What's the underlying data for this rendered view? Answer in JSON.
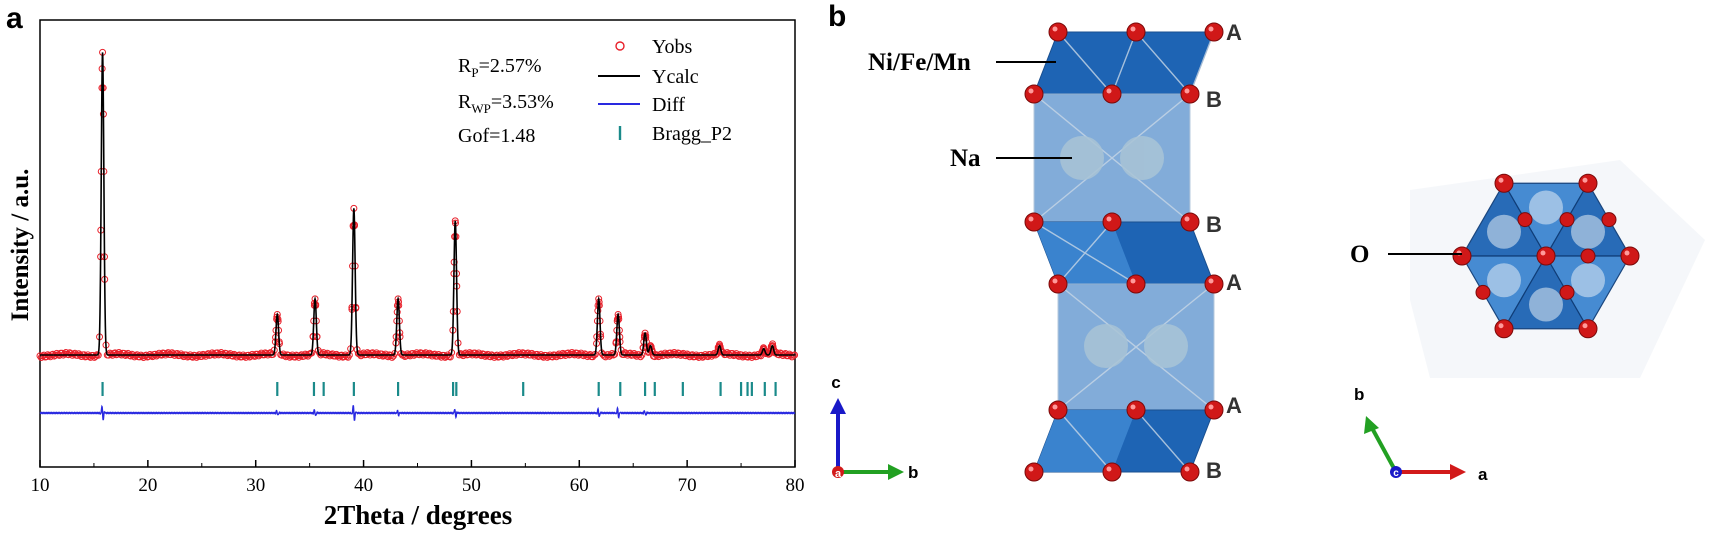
{
  "panels": {
    "a": {
      "label": "a"
    },
    "b": {
      "label": "b"
    }
  },
  "chart_data": {
    "type": "line",
    "title": "",
    "xlabel": "2Theta / degrees",
    "ylabel": "Intensity / a.u.",
    "xlim": [
      10,
      80
    ],
    "xticks": [
      10,
      20,
      30,
      40,
      50,
      60,
      70,
      80
    ],
    "y_ticks_shown": false,
    "grid": false,
    "legend_position": "top-right",
    "fit_stats": [
      {
        "name": "R",
        "sub": "P",
        "text": "=2.57%"
      },
      {
        "name": "R",
        "sub": "WP",
        "text": "=3.53%"
      },
      {
        "name": "Gof",
        "sub": "",
        "text": "=1.48"
      }
    ],
    "series": [
      {
        "name": "Yobs",
        "marker": "open-circle",
        "color": "#e8202a"
      },
      {
        "name": "Ycalc",
        "marker": "line",
        "color": "#000000"
      },
      {
        "name": "Diff",
        "marker": "line",
        "color": "#2929e0"
      },
      {
        "name": "Bragg_P2",
        "marker": "tick",
        "color": "#1a8a8a"
      }
    ],
    "baseline": 0.0,
    "peaks": [
      {
        "x": 15.8,
        "y": 0.97
      },
      {
        "x": 32.0,
        "y": 0.13
      },
      {
        "x": 35.5,
        "y": 0.18
      },
      {
        "x": 39.1,
        "y": 0.47
      },
      {
        "x": 43.2,
        "y": 0.18
      },
      {
        "x": 48.5,
        "y": 0.43
      },
      {
        "x": 61.8,
        "y": 0.18
      },
      {
        "x": 63.6,
        "y": 0.13
      },
      {
        "x": 66.1,
        "y": 0.07
      },
      {
        "x": 66.6,
        "y": 0.03
      },
      {
        "x": 73.0,
        "y": 0.03
      },
      {
        "x": 77.1,
        "y": 0.02
      },
      {
        "x": 77.9,
        "y": 0.03
      }
    ],
    "bragg_positions": [
      15.8,
      32.0,
      35.4,
      36.3,
      39.1,
      43.2,
      48.3,
      48.6,
      54.8,
      61.8,
      63.8,
      66.1,
      67.0,
      69.6,
      73.1,
      75.0,
      75.6,
      76.0,
      77.2,
      78.2
    ],
    "diff_spikes": [
      {
        "x": 15.8,
        "amp": 0.9
      },
      {
        "x": 32.0,
        "amp": 0.3
      },
      {
        "x": 35.5,
        "amp": 0.4
      },
      {
        "x": 39.1,
        "amp": 1.0
      },
      {
        "x": 43.2,
        "amp": 0.3
      },
      {
        "x": 48.5,
        "amp": 0.5
      },
      {
        "x": 61.8,
        "amp": 0.5
      },
      {
        "x": 63.6,
        "amp": 0.6
      },
      {
        "x": 66.1,
        "amp": 0.3
      }
    ]
  },
  "structure": {
    "labels": {
      "tm": "Ni/Fe/Mn",
      "na": "Na",
      "o": "O"
    },
    "stacking": [
      "A",
      "B",
      "B",
      "A",
      "A",
      "B"
    ],
    "axes_left": {
      "vertical": "c",
      "horizontal": "b",
      "origin": "a"
    },
    "axes_right": {
      "vertical": "b",
      "horizontal": "a",
      "origin": "c"
    },
    "colors": {
      "octahedron": "#1e64b4",
      "octahedron_light": "#3d86d0",
      "prism": "#6d9ed3",
      "sodium": "#a9c4d6",
      "oxygen": "#d01818",
      "axis_c": "#1919c8",
      "axis_b": "#22a022",
      "axis_a": "#d21a1a"
    }
  }
}
